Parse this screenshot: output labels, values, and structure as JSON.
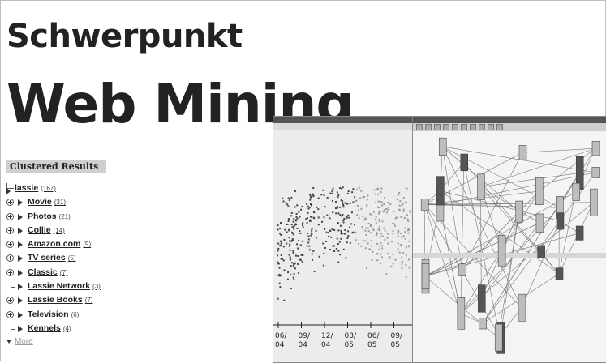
{
  "header": {
    "kicker": "Schwerpunkt",
    "headline": "Web Mining"
  },
  "clustered": {
    "title": "Clustered Results",
    "root": {
      "label": "lassie",
      "count": "(167)"
    },
    "items": [
      {
        "label": "Movie",
        "count": "(31)",
        "expandable": true
      },
      {
        "label": "Photos",
        "count": "(21)",
        "expandable": true
      },
      {
        "label": "Collie",
        "count": "(14)",
        "expandable": true
      },
      {
        "label": "Amazon.com",
        "count": "(9)",
        "expandable": true
      },
      {
        "label": "TV series",
        "count": "(5)",
        "expandable": true
      },
      {
        "label": "Classic",
        "count": "(7)",
        "expandable": true
      },
      {
        "label": "Lassie Network",
        "count": "(3)",
        "expandable": false
      },
      {
        "label": "Lassie Books",
        "count": "(7)",
        "expandable": true
      },
      {
        "label": "Television",
        "count": "(6)",
        "expandable": true
      },
      {
        "label": "Kennels",
        "count": "(4)",
        "expandable": false
      }
    ],
    "more": "More"
  },
  "timeline": {
    "ticks": [
      {
        "top": "06/",
        "bottom": "04"
      },
      {
        "top": "09/",
        "bottom": "04"
      },
      {
        "top": "12/",
        "bottom": "04"
      },
      {
        "top": "03/",
        "bottom": "05"
      },
      {
        "top": "06/",
        "bottom": "05"
      },
      {
        "top": "09/",
        "bottom": "05"
      }
    ]
  }
}
